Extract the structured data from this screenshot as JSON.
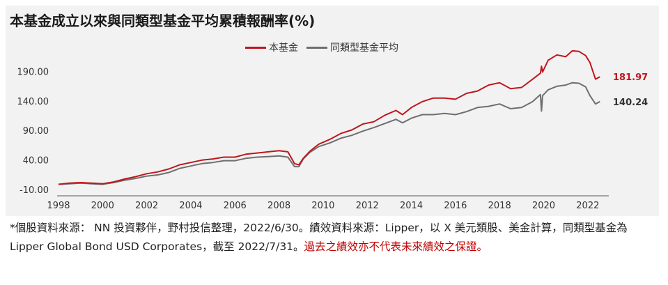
{
  "title": "本基金成立以來與同類型基金平均累積報酬率(%)",
  "footnote": {
    "text": "*個股資料來源： NN 投資夥伴，野村投信整理，2022/6/30。績效資料來源：Lipper，以 X 美元類股、美金計算，同類型基金為 Lipper Global Bond USD Corporates，截至 2022/7/31。",
    "warning": "過去之績效亦不代表未來績效之保證。"
  },
  "colors": {
    "fund": "#c0161c",
    "peer": "#6e6e6e",
    "panel": "#f2f2f2"
  },
  "chart_data": {
    "type": "line",
    "title": "本基金成立以來與同類型基金平均累積報酬率(%)",
    "xlabel": "",
    "ylabel": "",
    "xlim": [
      1998,
      2022.7
    ],
    "ylim": [
      -10,
      220
    ],
    "x_ticks": [
      "1998",
      "2000",
      "2002",
      "2004",
      "2006",
      "2008",
      "2010",
      "2012",
      "2014",
      "2016",
      "2018",
      "2020",
      "2022"
    ],
    "y_ticks": [
      "-10.00",
      "40.00",
      "90.00",
      "140.00",
      "190.00"
    ],
    "legend_position": "top-center",
    "grid": false,
    "end_labels": {
      "fund": "181.97",
      "peer": "140.24"
    },
    "series": [
      {
        "name": "本基金",
        "key": "fund",
        "x": [
          1998.0,
          1998.5,
          1999.0,
          1999.5,
          2000.0,
          2000.5,
          2001.0,
          2001.5,
          2002.0,
          2002.5,
          2003.0,
          2003.5,
          2004.0,
          2004.5,
          2005.0,
          2005.5,
          2006.0,
          2006.5,
          2007.0,
          2007.5,
          2008.0,
          2008.4,
          2008.7,
          2008.9,
          2009.1,
          2009.4,
          2009.8,
          2010.3,
          2010.8,
          2011.3,
          2011.8,
          2012.3,
          2012.8,
          2013.3,
          2013.6,
          2014.0,
          2014.5,
          2015.0,
          2015.5,
          2016.0,
          2016.5,
          2017.0,
          2017.5,
          2018.0,
          2018.5,
          2019.0,
          2019.5,
          2019.85,
          2019.9,
          2019.95,
          2020.2,
          2020.6,
          2021.0,
          2021.3,
          2021.6,
          2021.9,
          2022.1,
          2022.35,
          2022.55
        ],
        "values": [
          0,
          2,
          3,
          2,
          1,
          4,
          9,
          13,
          18,
          21,
          26,
          33,
          37,
          41,
          43,
          46,
          46,
          51,
          53,
          55,
          57,
          55,
          35,
          33,
          44,
          56,
          68,
          76,
          86,
          92,
          102,
          106,
          117,
          125,
          118,
          130,
          140,
          146,
          146,
          144,
          154,
          158,
          168,
          172,
          162,
          164,
          178,
          188,
          200,
          190,
          210,
          219,
          216,
          226,
          225,
          218,
          206,
          178,
          182
        ]
      },
      {
        "name": "同類型基金平均",
        "key": "peer",
        "x": [
          1998.0,
          1998.5,
          1999.0,
          1999.5,
          2000.0,
          2000.5,
          2001.0,
          2001.5,
          2002.0,
          2002.5,
          2003.0,
          2003.5,
          2004.0,
          2004.5,
          2005.0,
          2005.5,
          2006.0,
          2006.5,
          2007.0,
          2007.5,
          2008.0,
          2008.4,
          2008.7,
          2008.9,
          2009.1,
          2009.4,
          2009.8,
          2010.3,
          2010.8,
          2011.3,
          2011.8,
          2012.3,
          2012.8,
          2013.3,
          2013.6,
          2014.0,
          2014.5,
          2015.0,
          2015.5,
          2016.0,
          2016.5,
          2017.0,
          2017.5,
          2018.0,
          2018.5,
          2019.0,
          2019.5,
          2019.85,
          2019.9,
          2019.95,
          2020.2,
          2020.6,
          2021.0,
          2021.3,
          2021.6,
          2021.9,
          2022.1,
          2022.35,
          2022.55
        ],
        "values": [
          0,
          1,
          2,
          1,
          0,
          3,
          7,
          10,
          14,
          16,
          20,
          27,
          31,
          35,
          37,
          40,
          40,
          44,
          46,
          47,
          48,
          46,
          30,
          30,
          43,
          54,
          64,
          70,
          78,
          83,
          90,
          96,
          103,
          110,
          104,
          112,
          118,
          118,
          120,
          118,
          123,
          130,
          132,
          136,
          128,
          130,
          140,
          152,
          124,
          150,
          160,
          166,
          168,
          172,
          171,
          165,
          150,
          136,
          140
        ]
      }
    ]
  }
}
